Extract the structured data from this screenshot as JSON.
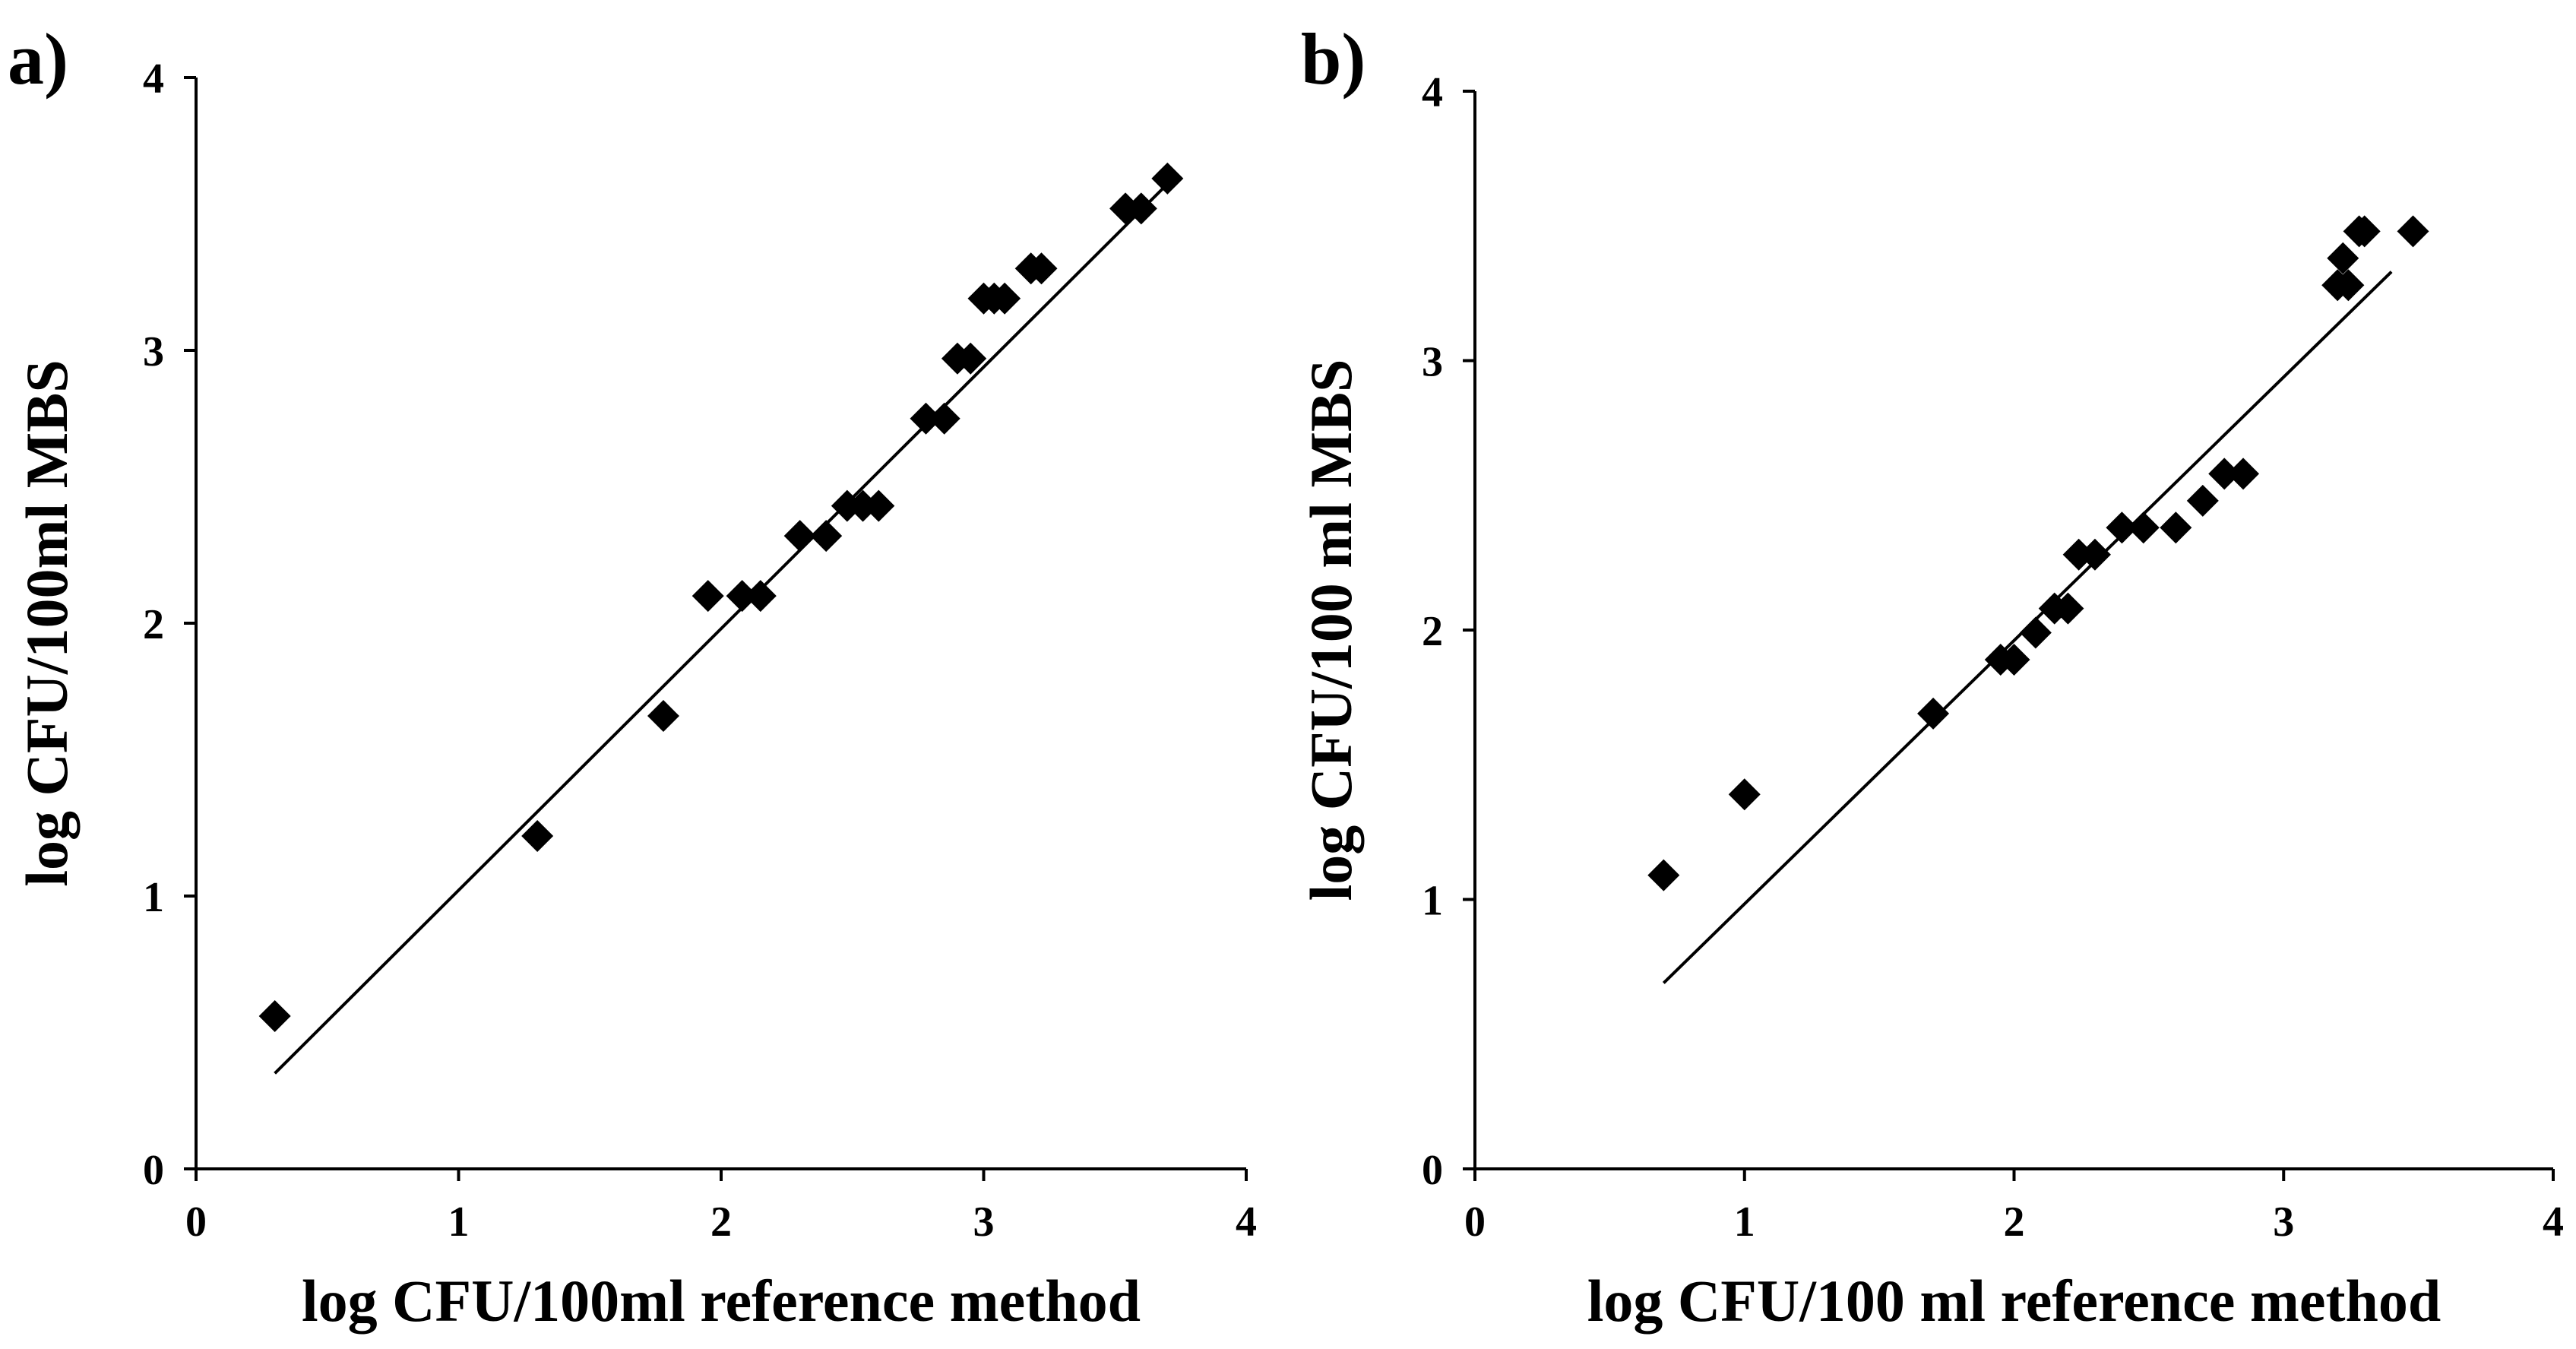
{
  "chart_data": [
    {
      "type": "scatter",
      "panel_label": "a)",
      "xlabel": "log CFU/100ml reference method",
      "ylabel": "log CFU/100ml MBS",
      "xlim": [
        0,
        4
      ],
      "ylim": [
        0,
        4
      ],
      "xticks": [
        "0",
        "1",
        "2",
        "3",
        "4"
      ],
      "yticks": [
        "0",
        "1",
        "2",
        "3",
        "4"
      ],
      "grid": false,
      "marker": "diamond",
      "color": "#000000",
      "points": [
        [
          0.3,
          0.56
        ],
        [
          1.3,
          1.22
        ],
        [
          1.78,
          1.66
        ],
        [
          1.95,
          2.1
        ],
        [
          2.08,
          2.1
        ],
        [
          2.15,
          2.1
        ],
        [
          2.3,
          2.32
        ],
        [
          2.4,
          2.32
        ],
        [
          2.48,
          2.43
        ],
        [
          2.54,
          2.43
        ],
        [
          2.6,
          2.43
        ],
        [
          2.78,
          2.75
        ],
        [
          2.85,
          2.75
        ],
        [
          2.9,
          2.97
        ],
        [
          2.95,
          2.97
        ],
        [
          3.0,
          3.19
        ],
        [
          3.04,
          3.19
        ],
        [
          3.08,
          3.19
        ],
        [
          3.18,
          3.3
        ],
        [
          3.22,
          3.3
        ],
        [
          3.54,
          3.52
        ],
        [
          3.6,
          3.52
        ],
        [
          3.7,
          3.63
        ]
      ],
      "trendline": {
        "x": [
          0.3,
          3.7
        ],
        "y": [
          0.35,
          3.61
        ]
      }
    },
    {
      "type": "scatter",
      "panel_label": "b)",
      "xlabel": "log CFU/100 ml reference method",
      "ylabel": "log CFU/100 ml MBS",
      "xlim": [
        0,
        4
      ],
      "ylim": [
        0,
        4
      ],
      "xticks": [
        "0",
        "1",
        "2",
        "3",
        "4"
      ],
      "yticks": [
        "0",
        "1",
        "2",
        "3",
        "4"
      ],
      "grid": false,
      "marker": "diamond",
      "color": "#000000",
      "points": [
        [
          0.7,
          1.09
        ],
        [
          1.0,
          1.39
        ],
        [
          1.7,
          1.69
        ],
        [
          1.95,
          1.89
        ],
        [
          2.0,
          1.89
        ],
        [
          2.08,
          1.99
        ],
        [
          2.15,
          2.08
        ],
        [
          2.2,
          2.08
        ],
        [
          2.24,
          2.28
        ],
        [
          2.3,
          2.28
        ],
        [
          2.4,
          2.38
        ],
        [
          2.48,
          2.38
        ],
        [
          2.6,
          2.38
        ],
        [
          2.7,
          2.48
        ],
        [
          2.78,
          2.58
        ],
        [
          2.85,
          2.58
        ],
        [
          3.2,
          3.28
        ],
        [
          3.24,
          3.28
        ],
        [
          3.22,
          3.38
        ],
        [
          3.28,
          3.48
        ],
        [
          3.3,
          3.48
        ],
        [
          3.48,
          3.48
        ]
      ],
      "trendline": {
        "x": [
          0.7,
          3.4
        ],
        "y": [
          0.69,
          3.33
        ]
      }
    }
  ]
}
